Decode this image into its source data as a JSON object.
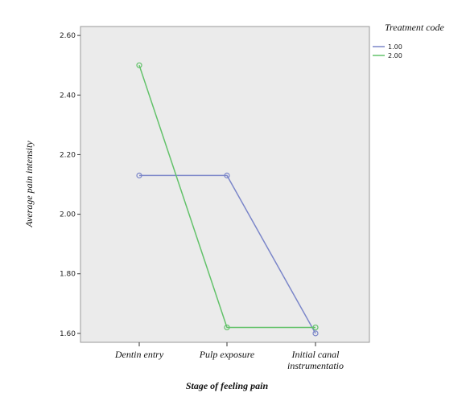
{
  "chart_data": {
    "type": "line",
    "categories": [
      "Dentin entry",
      "Pulp exposure",
      "Initial canal instrumentatio"
    ],
    "category_lines": [
      [
        "Dentin entry"
      ],
      [
        "Pulp exposure"
      ],
      [
        "Initial canal",
        "instrumentatio"
      ]
    ],
    "series": [
      {
        "name": "1.00",
        "color": "#7b86c9",
        "values": [
          2.13,
          2.13,
          1.6
        ]
      },
      {
        "name": "2.00",
        "color": "#63c26a",
        "values": [
          2.5,
          1.62,
          1.62
        ]
      }
    ],
    "xlabel": "Stage of feeling pain",
    "ylabel": "Average pain intensity",
    "legend_title": "Treatment code",
    "legend_placement": "top-right",
    "ylim": [
      1.57,
      2.63
    ],
    "yticks": [
      1.6,
      1.8,
      2.0,
      2.2,
      2.4,
      2.6
    ],
    "ytick_labels": [
      "1.60",
      "1.80",
      "2.00",
      "2.20",
      "2.40",
      "2.60"
    ],
    "grid": false,
    "background": "#ebebeb"
  }
}
